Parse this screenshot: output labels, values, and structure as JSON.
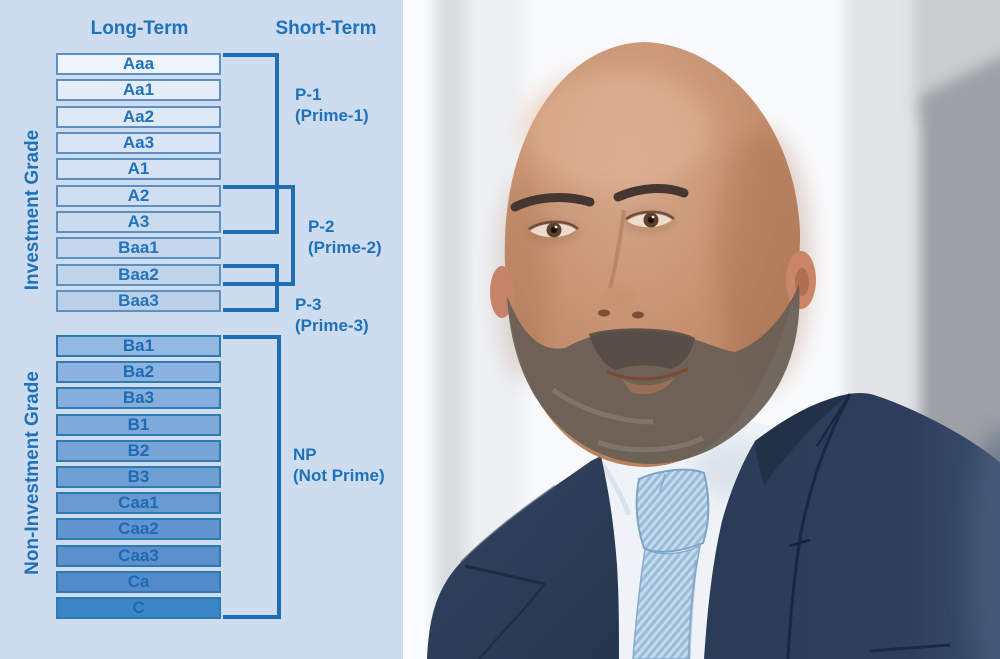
{
  "diagram": {
    "headers": {
      "long_term": "Long-Term",
      "short_term": "Short-Term"
    },
    "side_labels": {
      "investment": "Investment Grade",
      "non_investment": "Non-Investment Grade"
    },
    "long_term_ratings": {
      "investment": [
        {
          "label": "Aaa",
          "fill": "#eef4fb"
        },
        {
          "label": "Aa1",
          "fill": "#e4edf8"
        },
        {
          "label": "Aa2",
          "fill": "#dfe9f6"
        },
        {
          "label": "Aa3",
          "fill": "#d9e5f4"
        },
        {
          "label": "A1",
          "fill": "#d4e2f2"
        },
        {
          "label": "A2",
          "fill": "#cfdef0"
        },
        {
          "label": "A3",
          "fill": "#cadbee"
        },
        {
          "label": "Baa1",
          "fill": "#c4d7ec"
        },
        {
          "label": "Baa2",
          "fill": "#bfd4ea"
        },
        {
          "label": "Baa3",
          "fill": "#bad0e8"
        }
      ],
      "non_investment": [
        {
          "label": "Ba1",
          "fill": "#93b8e2"
        },
        {
          "label": "Ba2",
          "fill": "#8cb3df"
        },
        {
          "label": "Ba3",
          "fill": "#85aedd"
        },
        {
          "label": "B1",
          "fill": "#7ea9da"
        },
        {
          "label": "B2",
          "fill": "#77a4d7"
        },
        {
          "label": "B3",
          "fill": "#709fd4"
        },
        {
          "label": "Caa1",
          "fill": "#699ad2"
        },
        {
          "label": "Caa2",
          "fill": "#6295cf"
        },
        {
          "label": "Caa3",
          "fill": "#5b90cc"
        },
        {
          "label": "Ca",
          "fill": "#538bca"
        },
        {
          "label": "C",
          "fill": "#3c86c7"
        }
      ]
    },
    "short_term_ratings": [
      {
        "code": "P-1",
        "name": "(Prime-1)",
        "maps_to": [
          "Aaa",
          "Aa1",
          "Aa2",
          "Aa3",
          "A1",
          "A2",
          "A3"
        ]
      },
      {
        "code": "P-2",
        "name": "(Prime-2)",
        "maps_to": [
          "A2",
          "A3",
          "Baa1",
          "Baa2"
        ]
      },
      {
        "code": "P-3",
        "name": "(Prime-3)",
        "maps_to": [
          "Baa2",
          "Baa3"
        ]
      },
      {
        "code": "NP",
        "name": "(Not Prime)",
        "maps_to": [
          "Ba1",
          "Ba2",
          "Ba3",
          "B1",
          "B2",
          "B3",
          "Caa1",
          "Caa2",
          "Caa3",
          "Ca",
          "C"
        ]
      }
    ],
    "colors": {
      "panel_bg": "#cddcef",
      "bracket_line": "#1e6eb4",
      "text": "#1f72ba",
      "box_border_light": "#5d8fc0",
      "box_border_dark": "#2f7bb0"
    }
  },
  "photo": {
    "description": "Blurred office portrait of a bald man with a short grey-brown beard wearing a navy suit, white shirt and light blue textured tie",
    "colors": {
      "suit": "#2e3f5d",
      "shirt": "#eff3f7",
      "tie": "#a7c7e2",
      "skin": "#c08a6a",
      "background": "#f4f6f7",
      "grey_panel": "#9da0a5"
    }
  }
}
